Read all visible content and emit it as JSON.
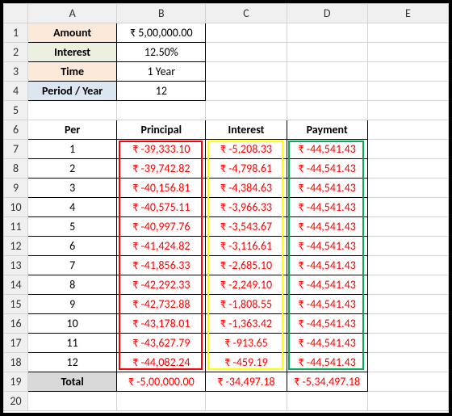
{
  "columns": [
    "A",
    "B",
    "C",
    "D",
    "E"
  ],
  "labels": {
    "amount": "Amount",
    "interest": "Interest",
    "time": "Time",
    "periodYear": "Period / Year"
  },
  "values": {
    "amount": "₹ 5,00,000.00",
    "interest": "12.50%",
    "time": "1 Year",
    "periodYear": "12"
  },
  "tableHeaders": {
    "per": "Per",
    "principal": "Principal",
    "interest": "Interest",
    "payment": "Payment"
  },
  "rows": [
    {
      "per": "1",
      "principal": "₹ -39,333.10",
      "interest": "₹ -5,208.33",
      "payment": "₹ -44,541.43"
    },
    {
      "per": "2",
      "principal": "₹ -39,742.82",
      "interest": "₹ -4,798.61",
      "payment": "₹ -44,541.43"
    },
    {
      "per": "3",
      "principal": "₹ -40,156.81",
      "interest": "₹ -4,384.63",
      "payment": "₹ -44,541.43"
    },
    {
      "per": "4",
      "principal": "₹ -40,575.11",
      "interest": "₹ -3,966.33",
      "payment": "₹ -44,541.43"
    },
    {
      "per": "5",
      "principal": "₹ -40,997.76",
      "interest": "₹ -3,543.67",
      "payment": "₹ -44,541.43"
    },
    {
      "per": "6",
      "principal": "₹ -41,424.82",
      "interest": "₹ -3,116.61",
      "payment": "₹ -44,541.43"
    },
    {
      "per": "7",
      "principal": "₹ -41,856.33",
      "interest": "₹ -2,685.10",
      "payment": "₹ -44,541.43"
    },
    {
      "per": "8",
      "principal": "₹ -42,292.33",
      "interest": "₹ -2,249.10",
      "payment": "₹ -44,541.43"
    },
    {
      "per": "9",
      "principal": "₹ -42,732.88",
      "interest": "₹ -1,808.55",
      "payment": "₹ -44,541.43"
    },
    {
      "per": "10",
      "principal": "₹ -43,178.01",
      "interest": "₹ -1,363.42",
      "payment": "₹ -44,541.43"
    },
    {
      "per": "11",
      "principal": "₹ -43,627.79",
      "interest": "₹ -913.65",
      "payment": "₹ -44,541.43"
    },
    {
      "per": "12",
      "principal": "₹ -44,082.24",
      "interest": "₹ -459.19",
      "payment": "₹ -44,541.43"
    }
  ],
  "totals": {
    "label": "Total",
    "principal": "₹ -5,00,000.00",
    "interest": "₹ -34,497.18",
    "payment": "₹ -5,34,497.18"
  },
  "highlightColors": {
    "principal": "#ff0000",
    "interest": "#ffff00",
    "payment": "#00b050"
  }
}
